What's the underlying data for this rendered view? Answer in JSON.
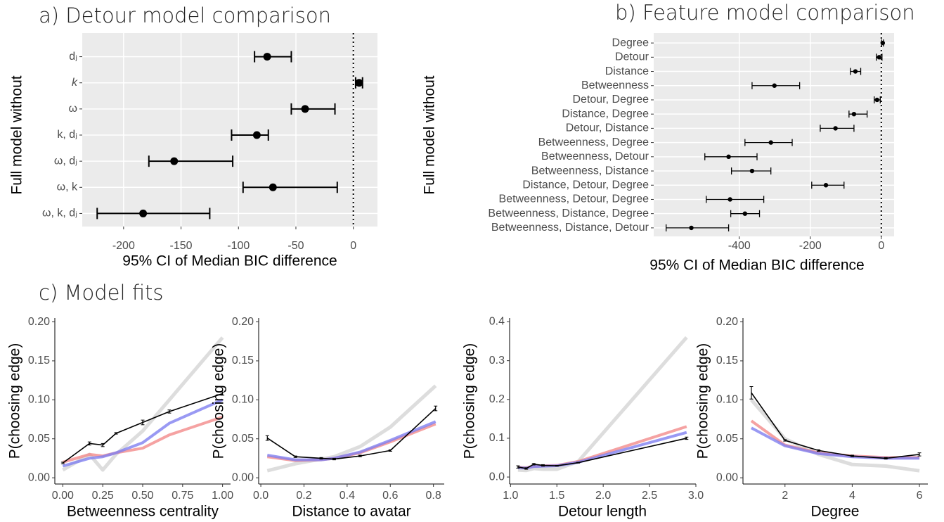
{
  "chart_data": [
    {
      "type": "point-range",
      "title": "a) Detour model comparison",
      "xlabel": "95% CI of Median BIC difference",
      "ylabel": "Full model without",
      "categories": [
        "dⱼ",
        "k",
        "ω",
        "k, dⱼ",
        "ω, dⱼ",
        "ω, k",
        "ω, k, dⱼ"
      ],
      "values": [
        -75,
        5,
        -42,
        -84,
        -156,
        -70,
        -183
      ],
      "lower": [
        -86,
        2,
        -54,
        -106,
        -178,
        -96,
        -223
      ],
      "upper": [
        -54,
        8,
        -16,
        -74,
        -105,
        -14,
        -125
      ],
      "xlim": [
        -236,
        21
      ],
      "xticks": [
        -200,
        -150,
        -100,
        -50,
        0
      ],
      "reference_line": 0,
      "grid": true,
      "color": "#000000"
    },
    {
      "type": "point-range",
      "title": "b) Feature model comparison",
      "xlabel": "95% CI of Median BIC difference",
      "ylabel": "Full model without",
      "categories": [
        "Degree",
        "Detour",
        "Distance",
        "Betweenness",
        "Detour, Degree",
        "Distance, Degree",
        "Detour, Distance",
        "Betweenness, Degree",
        "Betweenness, Detour",
        "Betweenness, Distance",
        "Distance, Detour, Degree",
        "Betweenness, Detour, Degree",
        "Betweenness, Distance, Degree",
        "Betweenness, Distance, Detour"
      ],
      "values": [
        4,
        -6,
        -73,
        -301,
        -12,
        -77,
        -129,
        -311,
        -430,
        -364,
        -156,
        -426,
        -384,
        -535
      ],
      "lower": [
        1,
        -14,
        -87,
        -364,
        -20,
        -91,
        -172,
        -384,
        -497,
        -422,
        -196,
        -493,
        -424,
        -606
      ],
      "upper": [
        6,
        2,
        -58,
        -230,
        -3,
        -40,
        -77,
        -251,
        -350,
        -311,
        -105,
        -331,
        -343,
        -430
      ],
      "xlim": [
        -641,
        36
      ],
      "xticks": [
        -400,
        -200,
        0
      ],
      "reference_line": 0,
      "grid": true,
      "color": "#000000"
    },
    {
      "type": "line",
      "section_title": "c) Model fits",
      "xlabel": "Betweenness centrality",
      "ylabel": "P(choosing edge)",
      "x": [
        0,
        0.167,
        0.25,
        0.333,
        0.5,
        0.667,
        1.0
      ],
      "series": [
        {
          "color": "#d9d9d9",
          "values": [
            0.01,
            0.03,
            0.01,
            0.03,
            0.06,
            0.1,
            0.18
          ]
        },
        {
          "color": "#f28b8b",
          "values": [
            0.02,
            0.03,
            0.028,
            0.032,
            0.038,
            0.055,
            0.078
          ]
        },
        {
          "color": "#8080f0",
          "values": [
            0.015,
            0.025,
            0.027,
            0.032,
            0.045,
            0.07,
            0.1
          ]
        },
        {
          "color": "#000000",
          "values": [
            0.019,
            0.044,
            0.042,
            0.057,
            0.071,
            0.085,
            0.108
          ],
          "errors": [
            0.001,
            0.002,
            0.002,
            0.001,
            0.003,
            0.002,
            0.002
          ]
        }
      ],
      "xlim": [
        -0.05,
        1.05
      ],
      "xticks": [
        {
          "value": 0,
          "label": "0.00"
        },
        {
          "value": 0.25,
          "label": "0.25"
        },
        {
          "value": 0.5,
          "label": "0.50"
        },
        {
          "value": 0.75,
          "label": "0.75"
        },
        {
          "value": 1,
          "label": "1.00"
        }
      ],
      "ylim": [
        -0.008,
        0.205
      ],
      "yticks": [
        {
          "value": 0,
          "label": "0.00"
        },
        {
          "value": 0.05,
          "label": "0.05"
        },
        {
          "value": 0.1,
          "label": "0.10"
        },
        {
          "value": 0.15,
          "label": "0.15"
        },
        {
          "value": 0.2,
          "label": "0.20"
        }
      ]
    },
    {
      "type": "line",
      "xlabel": "Distance to avatar",
      "ylabel": "P(choosing edge)",
      "x": [
        0.03,
        0.16,
        0.28,
        0.34,
        0.46,
        0.6,
        0.81
      ],
      "series": [
        {
          "color": "#d9d9d9",
          "values": [
            0.009,
            0.018,
            0.024,
            0.027,
            0.04,
            0.065,
            0.118
          ]
        },
        {
          "color": "#f28b8b",
          "values": [
            0.027,
            0.022,
            0.023,
            0.025,
            0.032,
            0.046,
            0.069
          ]
        },
        {
          "color": "#8080f0",
          "values": [
            0.029,
            0.023,
            0.023,
            0.025,
            0.033,
            0.048,
            0.072
          ]
        },
        {
          "color": "#000000",
          "values": [
            0.051,
            0.027,
            0.025,
            0.024,
            0.028,
            0.035,
            0.089
          ],
          "errors": [
            0.003,
            0.001,
            0.001,
            0.001,
            0.001,
            0.001,
            0.003
          ]
        }
      ],
      "xlim": [
        -0.01,
        0.85
      ],
      "xticks": [
        {
          "value": 0,
          "label": "0.0"
        },
        {
          "value": 0.2,
          "label": "0.2"
        },
        {
          "value": 0.4,
          "label": "0.4"
        },
        {
          "value": 0.6,
          "label": "0.6"
        },
        {
          "value": 0.8,
          "label": "0.8"
        }
      ],
      "ylim": [
        -0.008,
        0.205
      ],
      "yticks": [
        {
          "value": 0,
          "label": "0.00"
        },
        {
          "value": 0.05,
          "label": "0.05"
        },
        {
          "value": 0.1,
          "label": "0.10"
        },
        {
          "value": 0.15,
          "label": "0.15"
        },
        {
          "value": 0.2,
          "label": "0.20"
        }
      ]
    },
    {
      "type": "line",
      "xlabel": "Detour length",
      "ylabel": "P(choosing edge)",
      "x": [
        1.08,
        1.17,
        1.25,
        1.35,
        1.5,
        1.73,
        2.9
      ],
      "series": [
        {
          "color": "#d9d9d9",
          "values": [
            0.018,
            0.017,
            0.022,
            0.02,
            0.02,
            0.04,
            0.36
          ]
        },
        {
          "color": "#f28b8b",
          "values": [
            0.025,
            0.024,
            0.028,
            0.029,
            0.03,
            0.04,
            0.13
          ]
        },
        {
          "color": "#8080f0",
          "values": [
            0.024,
            0.023,
            0.027,
            0.028,
            0.029,
            0.038,
            0.115
          ]
        },
        {
          "color": "#000000",
          "values": [
            0.026,
            0.022,
            0.033,
            0.03,
            0.029,
            0.037,
            0.1
          ],
          "errors": [
            0.003,
            0.002,
            0.002,
            0.002,
            0.001,
            0.001,
            0.003
          ]
        }
      ],
      "xlim": [
        0.99,
        3.0
      ],
      "xticks": [
        {
          "value": 1,
          "label": "1.0"
        },
        {
          "value": 1.5,
          "label": "1.5"
        },
        {
          "value": 2,
          "label": "2.0"
        },
        {
          "value": 2.5,
          "label": "2.5"
        },
        {
          "value": 3,
          "label": "3.0"
        }
      ],
      "ylim": [
        -0.018,
        0.41
      ],
      "yticks": [
        {
          "value": 0,
          "label": "0.0"
        },
        0.1,
        0.2,
        0.3,
        0.4
      ]
    },
    {
      "type": "line",
      "xlabel": "Degree",
      "ylabel": "P(choosing edge)",
      "x": [
        1,
        2,
        3,
        4,
        5,
        6
      ],
      "series": [
        {
          "color": "#d9d9d9",
          "values": [
            0.1,
            0.05,
            0.03,
            0.017,
            0.015,
            0.009
          ]
        },
        {
          "color": "#f28b8b",
          "values": [
            0.073,
            0.042,
            0.032,
            0.028,
            0.026,
            0.026
          ]
        },
        {
          "color": "#8080f0",
          "values": [
            0.064,
            0.041,
            0.031,
            0.027,
            0.025,
            0.025
          ]
        },
        {
          "color": "#000000",
          "values": [
            0.109,
            0.048,
            0.035,
            0.028,
            0.025,
            0.03
          ],
          "errors": [
            0.008,
            0.001,
            0.001,
            0.001,
            0.001,
            0.002
          ]
        }
      ],
      "xlim": [
        0.75,
        6.25
      ],
      "xticks": [
        2,
        4,
        6
      ],
      "ylim": [
        -0.008,
        0.205
      ],
      "yticks": [
        {
          "value": 0,
          "label": "0.00"
        },
        {
          "value": 0.05,
          "label": "0.05"
        },
        {
          "value": 0.1,
          "label": "0.10"
        },
        {
          "value": 0.15,
          "label": "0.15"
        },
        {
          "value": 0.2,
          "label": "0.20"
        }
      ]
    }
  ]
}
